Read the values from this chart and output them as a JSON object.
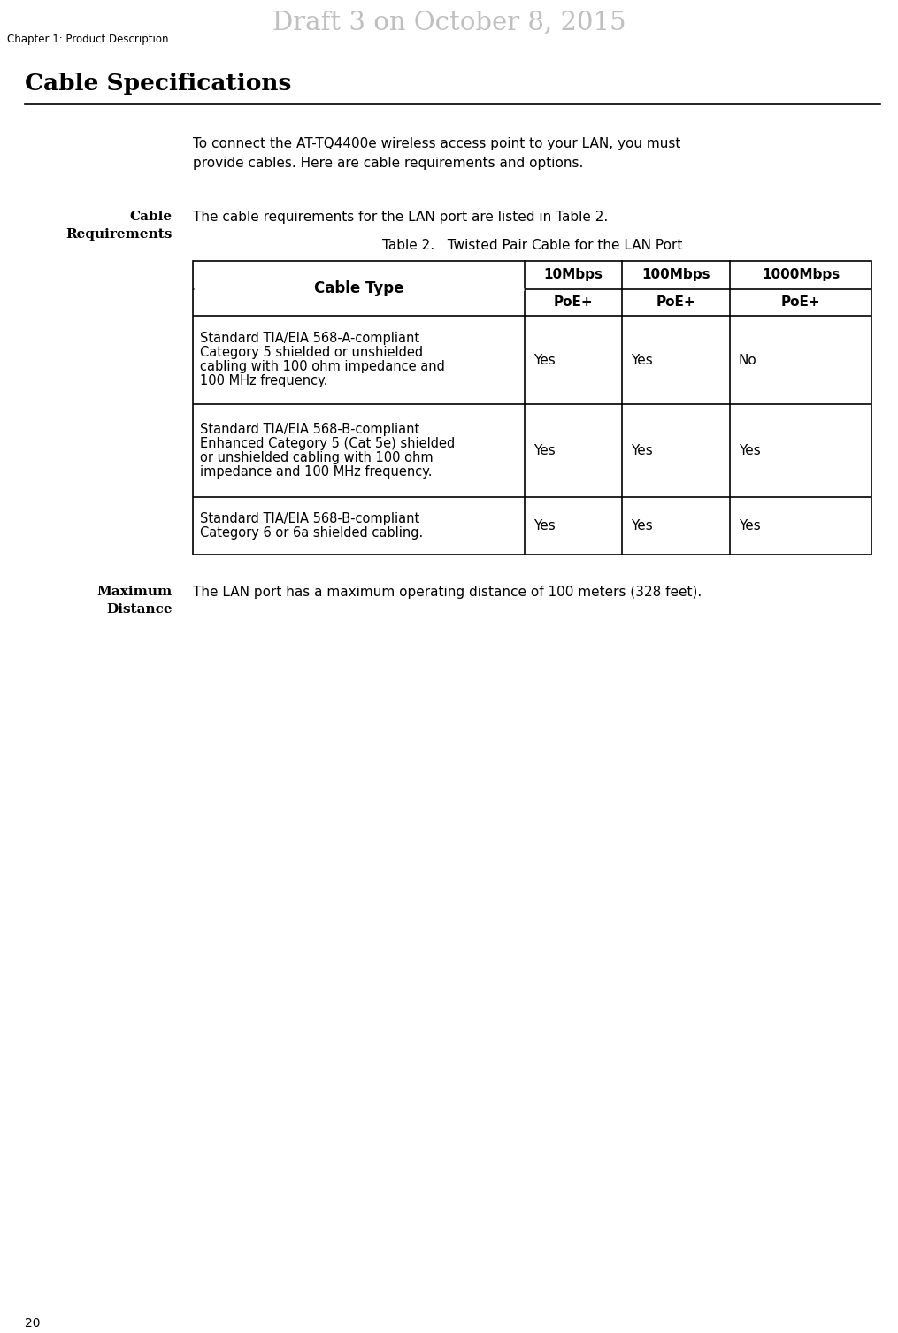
{
  "page_num": "20",
  "header_text": "Draft 3 on October 8, 2015",
  "chapter_text": "Chapter 1: Product Description",
  "section_title": "Cable Specifications",
  "intro_line1": "To connect the AT-TQ4400e wireless access point to your LAN, you must",
  "intro_line2": "provide cables. Here are cable requirements and options.",
  "sidebar_cable1": "Cable",
  "sidebar_cable2": "Requirements",
  "cable_req_text": "The cable requirements for the LAN port are listed in Table 2.",
  "table_title": "Table 2.   Twisted Pair Cable for the LAN Port",
  "sidebar_max1": "Maximum",
  "sidebar_max2": "Distance",
  "max_dist_text": "The LAN port has a maximum operating distance of 100 meters (328 feet).",
  "col_headers_top": [
    "10Mbps",
    "100Mbps",
    "1000Mbps"
  ],
  "col_headers_bot": [
    "PoE+",
    "PoE+",
    "PoE+"
  ],
  "col1_header": "Cable Type",
  "table_rows": [
    {
      "cable_lines": [
        "Standard TIA/EIA 568-A-compliant",
        "Category 5 shielded or unshielded",
        "cabling with 100 ohm impedance and",
        "100 MHz frequency."
      ],
      "vals": [
        "Yes",
        "Yes",
        "No"
      ]
    },
    {
      "cable_lines": [
        "Standard TIA/EIA 568-B-compliant",
        "Enhanced Category 5 (Cat 5e) shielded",
        "or unshielded cabling with 100 ohm",
        "impedance and 100 MHz frequency."
      ],
      "vals": [
        "Yes",
        "Yes",
        "Yes"
      ]
    },
    {
      "cable_lines": [
        "Standard TIA/EIA 568-B-compliant",
        "Category 6 or 6a shielded cabling."
      ],
      "vals": [
        "Yes",
        "Yes",
        "Yes"
      ]
    }
  ],
  "bg_color": "#ffffff",
  "text_color": "#000000",
  "header_color": "#aaaaaa",
  "table_border_color": "#000000"
}
